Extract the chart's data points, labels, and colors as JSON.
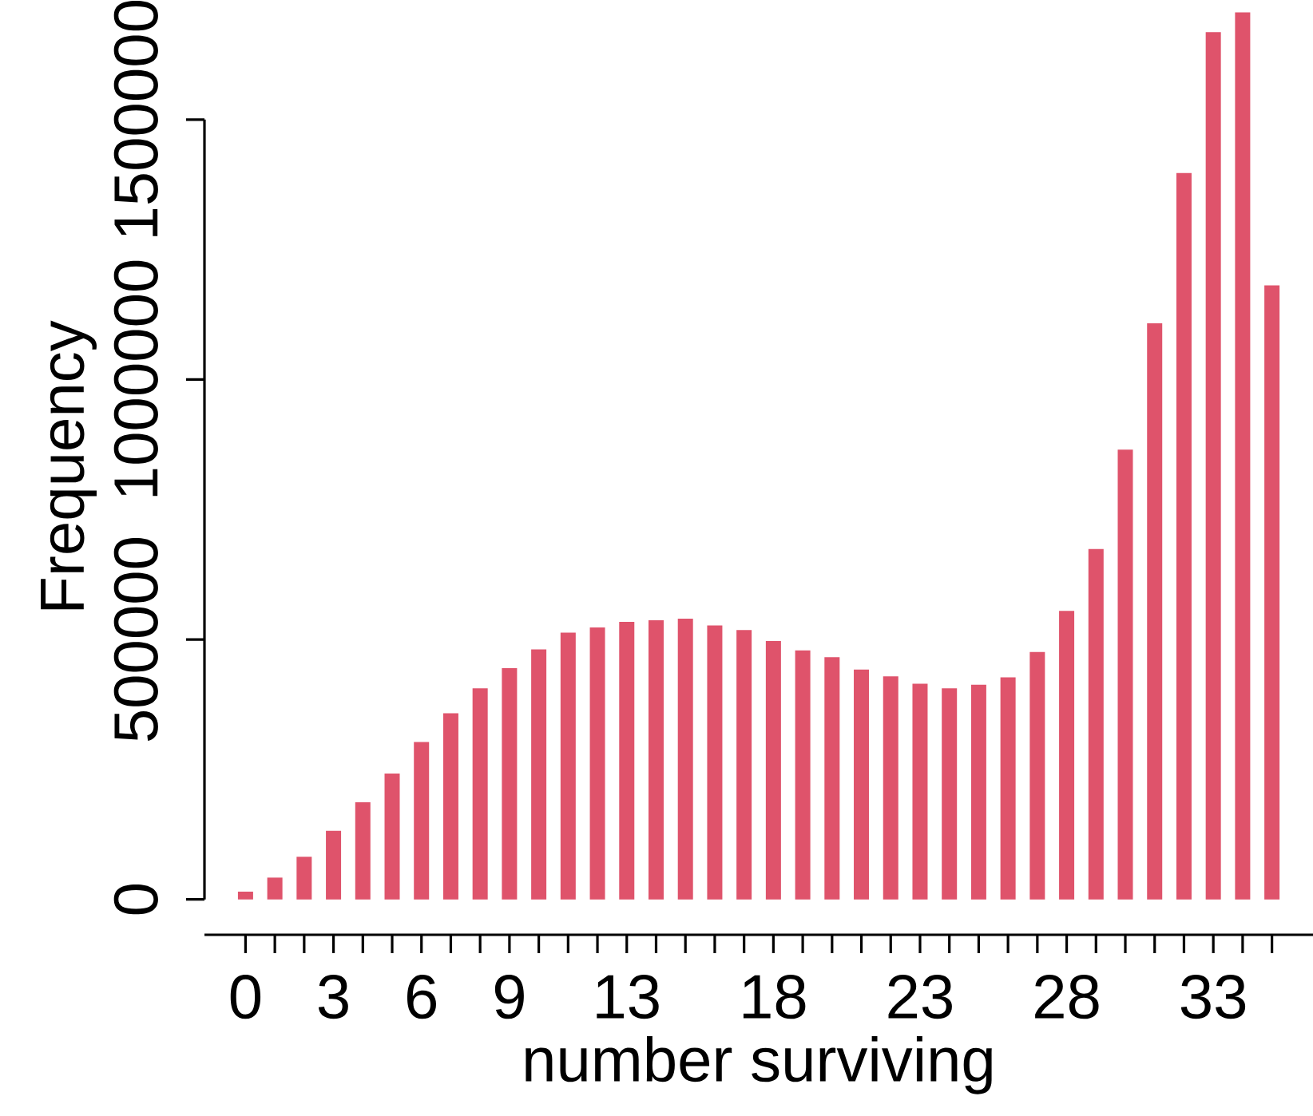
{
  "chart_data": {
    "type": "bar",
    "xlabel": "number surviving",
    "ylabel": "Frequency",
    "color": "#df536b",
    "grid": false,
    "x": [
      0,
      1,
      2,
      3,
      4,
      5,
      6,
      7,
      8,
      9,
      10,
      11,
      12,
      13,
      14,
      15,
      16,
      17,
      18,
      19,
      20,
      21,
      22,
      23,
      24,
      25,
      26,
      27,
      28,
      29,
      30,
      31,
      32,
      33,
      34,
      35
    ],
    "values": [
      15000,
      42000,
      82000,
      132000,
      187000,
      242000,
      303000,
      358000,
      406000,
      445000,
      481000,
      513000,
      523000,
      534000,
      537000,
      540000,
      527000,
      518000,
      497000,
      479000,
      466000,
      442000,
      429000,
      415000,
      406000,
      413000,
      427000,
      476000,
      555000,
      674000,
      865000,
      1108000,
      1397000,
      1668000,
      1706000,
      1181000
    ],
    "xlim": [
      -1.4,
      36.4
    ],
    "ylim": [
      -68000,
      1730000
    ],
    "xticks": [
      0,
      3,
      6,
      9,
      13,
      18,
      23,
      28,
      33
    ],
    "yticks": [
      0,
      500000,
      1000000,
      1500000
    ]
  }
}
